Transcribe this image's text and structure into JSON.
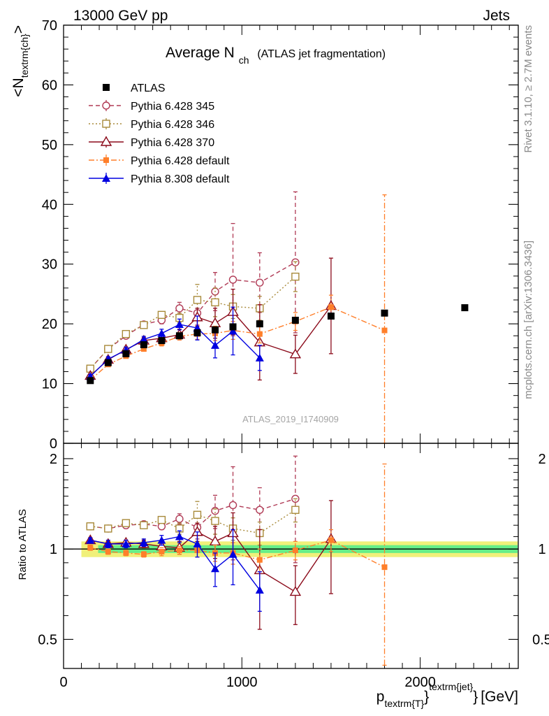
{
  "header": {
    "beam": "13000 GeV pp",
    "process": "Jets"
  },
  "side_labels": {
    "rivet": "Rivet 3.1.10, ≥ 2.7M events",
    "mcplots": "mcplots.cern.ch [arXiv:1306.3436]"
  },
  "colors": {
    "ATLAS": "#000000",
    "Pythia 6.428 345": "#b03a55",
    "Pythia 6.428 346": "#a88a3a",
    "Pythia 6.428 370": "#8b0a1a",
    "Pythia 6.428 default": "#ff7f2a",
    "Pythia 8.308 default": "#0000e0",
    "band_inner": "#66ee88",
    "band_outer": "#f0f07a"
  },
  "chart_data": [
    {
      "type": "line",
      "panel": "main",
      "title": "Average N",
      "title_sub": "ch",
      "title_suffix": "(ATLAS jet fragmentation)",
      "ylabel": "<N",
      "ylabel_sub": "textrm{ch}",
      "ylabel_end": ">",
      "watermark": "ATLAS_2019_I1740909",
      "xlim": [
        0,
        2550
      ],
      "ylim": [
        0,
        70
      ],
      "yticks": [
        0,
        10,
        20,
        30,
        40,
        50,
        60,
        70
      ],
      "legend_position": "top-left",
      "series": [
        {
          "name": "ATLAS",
          "marker": "filled-square",
          "x": [
            150,
            250,
            350,
            450,
            550,
            650,
            750,
            850,
            950,
            1100,
            1300,
            1500,
            1800,
            2250
          ],
          "y": [
            10.5,
            13.5,
            15.0,
            16.5,
            17.2,
            18.0,
            18.5,
            19.0,
            19.5,
            20.0,
            20.6,
            21.3,
            21.8,
            22.7
          ]
        },
        {
          "name": "Pythia 6.428 345",
          "marker": "open-circle",
          "dash": "6,4",
          "x": [
            150,
            250,
            350,
            450,
            550,
            650,
            750,
            850,
            950,
            1100,
            1300
          ],
          "y": [
            12.5,
            15.8,
            18.0,
            19.9,
            20.6,
            22.6,
            21.8,
            25.4,
            27.4,
            26.9,
            30.3
          ],
          "yerr": [
            0.4,
            0.4,
            0.4,
            0.4,
            0.6,
            1.0,
            2.0,
            3.2,
            9.4,
            5.0,
            11.8
          ]
        },
        {
          "name": "Pythia 6.428 346",
          "marker": "open-square",
          "dash": "2,3",
          "x": [
            150,
            250,
            350,
            450,
            550,
            650,
            750,
            850,
            950,
            1100,
            1300
          ],
          "y": [
            12.5,
            15.8,
            18.3,
            19.8,
            21.5,
            21.0,
            24.0,
            23.6,
            22.9,
            22.6,
            27.9
          ],
          "yerr": [
            0.4,
            0.4,
            0.4,
            0.4,
            0.5,
            0.8,
            2.6,
            2.4,
            2.0,
            2.0,
            2.5
          ]
        },
        {
          "name": "Pythia 6.428 370",
          "marker": "open-triangle",
          "dash": "",
          "x": [
            150,
            250,
            350,
            450,
            550,
            650,
            750,
            850,
            950,
            1100,
            1300,
            1500
          ],
          "y": [
            11.3,
            14.0,
            15.7,
            17.2,
            17.6,
            18.2,
            21.1,
            20.1,
            22.0,
            16.9,
            14.9,
            23.0
          ],
          "yerr": [
            0.3,
            0.3,
            0.4,
            0.5,
            0.6,
            0.9,
            1.5,
            2.5,
            3.8,
            6.3,
            3.2,
            8.0
          ]
        },
        {
          "name": "Pythia 6.428 default",
          "marker": "filled-square-small",
          "dash": "8,3,2,3",
          "x": [
            150,
            250,
            350,
            450,
            550,
            650,
            750,
            850,
            950,
            1100,
            1300,
            1500,
            1800
          ],
          "y": [
            10.6,
            13.2,
            14.6,
            15.8,
            16.8,
            17.9,
            18.3,
            18.4,
            18.9,
            18.3,
            20.4,
            22.8,
            18.9
          ],
          "yerr": [
            0.3,
            0.3,
            0.3,
            0.4,
            0.5,
            0.6,
            0.9,
            1.2,
            1.5,
            1.5,
            1.5,
            2.0,
            22.7
          ]
        },
        {
          "name": "Pythia 8.308 default",
          "marker": "filled-triangle",
          "dash": "",
          "x": [
            150,
            250,
            350,
            450,
            550,
            650,
            750,
            850,
            950,
            1100
          ],
          "y": [
            11.2,
            14.1,
            15.6,
            17.4,
            18.4,
            19.9,
            19.3,
            16.4,
            18.8,
            14.3
          ],
          "yerr": [
            0.3,
            0.4,
            0.5,
            0.5,
            0.7,
            0.9,
            2.0,
            2.1,
            4.0,
            2.1
          ]
        }
      ]
    },
    {
      "type": "line",
      "panel": "ratio",
      "ylabel": "Ratio to ATLAS",
      "xlabel": "p",
      "xlabel_sub": "textrm{T}",
      "xlabel_sup": "textrm{jet}",
      "xlabel_unit": "[GeV]",
      "xlim": [
        0,
        2550
      ],
      "xticks": [
        0,
        1000,
        2000
      ],
      "ylim": [
        0.4,
        2.25
      ],
      "yscale": "log",
      "yticks": [
        0.5,
        1,
        2
      ],
      "band": {
        "x": [
          100,
          2550
        ],
        "inner": [
          0.97,
          1.03
        ],
        "outer": [
          0.94,
          1.06
        ]
      },
      "series": [
        {
          "name": "Pythia 6.428 345",
          "x": [
            150,
            250,
            350,
            450,
            550,
            650,
            750,
            850,
            950,
            1100,
            1300
          ],
          "y": [
            1.19,
            1.17,
            1.2,
            1.21,
            1.19,
            1.26,
            1.18,
            1.34,
            1.4,
            1.35,
            1.47
          ],
          "yerr": [
            0.03,
            0.03,
            0.03,
            0.03,
            0.03,
            0.05,
            0.1,
            0.17,
            0.48,
            0.25,
            0.57
          ]
        },
        {
          "name": "Pythia 6.428 346",
          "x": [
            150,
            250,
            350,
            450,
            550,
            650,
            750,
            850,
            950,
            1100,
            1300
          ],
          "y": [
            1.19,
            1.17,
            1.22,
            1.2,
            1.25,
            1.17,
            1.3,
            1.24,
            1.17,
            1.13,
            1.35
          ],
          "yerr": [
            0.03,
            0.03,
            0.03,
            0.03,
            0.03,
            0.05,
            0.14,
            0.12,
            0.1,
            0.1,
            0.12
          ]
        },
        {
          "name": "Pythia 6.428 370",
          "x": [
            150,
            250,
            350,
            450,
            550,
            650,
            750,
            850,
            950,
            1100,
            1300,
            1500
          ],
          "y": [
            1.07,
            1.04,
            1.05,
            1.04,
            1.02,
            1.01,
            1.14,
            1.06,
            1.13,
            0.85,
            0.72,
            1.08
          ],
          "yerr": [
            0.02,
            0.02,
            0.02,
            0.03,
            0.04,
            0.05,
            0.08,
            0.13,
            0.19,
            0.31,
            0.16,
            0.37
          ]
        },
        {
          "name": "Pythia 6.428 default",
          "x": [
            150,
            250,
            350,
            450,
            550,
            650,
            750,
            850,
            950,
            1100,
            1300,
            1500,
            1800
          ],
          "y": [
            1.01,
            0.98,
            0.97,
            0.96,
            0.98,
            0.99,
            0.99,
            0.97,
            0.97,
            0.92,
            0.99,
            1.07,
            0.87
          ],
          "yerr": [
            0.02,
            0.02,
            0.02,
            0.02,
            0.03,
            0.03,
            0.05,
            0.06,
            0.08,
            0.08,
            0.07,
            0.09,
            1.05
          ]
        },
        {
          "name": "Pythia 8.308 default",
          "x": [
            150,
            250,
            350,
            450,
            550,
            650,
            750,
            850,
            950,
            1100
          ],
          "y": [
            1.07,
            1.04,
            1.04,
            1.05,
            1.07,
            1.1,
            1.04,
            0.86,
            0.96,
            0.73
          ],
          "yerr": [
            0.02,
            0.03,
            0.03,
            0.03,
            0.04,
            0.05,
            0.1,
            0.11,
            0.2,
            0.11
          ]
        }
      ]
    }
  ]
}
